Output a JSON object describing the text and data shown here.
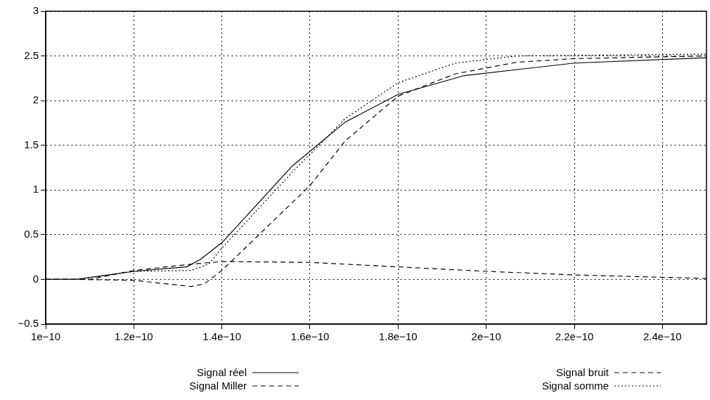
{
  "chart_data": {
    "type": "line",
    "xlim": [
      1e-10,
      2.5e-10
    ],
    "ylim": [
      -0.5,
      3
    ],
    "xticks": [
      {
        "value": 1e-10,
        "label": "1e−10"
      },
      {
        "value": 1.2e-10,
        "label": "1.2e−10"
      },
      {
        "value": 1.4e-10,
        "label": "1.4e−10"
      },
      {
        "value": 1.6e-10,
        "label": "1.6e−10"
      },
      {
        "value": 1.8e-10,
        "label": "1.8e−10"
      },
      {
        "value": 2e-10,
        "label": "2e−10"
      },
      {
        "value": 2.2e-10,
        "label": "2.2e−10"
      },
      {
        "value": 2.4e-10,
        "label": "2.4e−10"
      }
    ],
    "yticks": [
      {
        "value": -0.5,
        "label": "−0.5"
      },
      0,
      0.5,
      1,
      1.5,
      2,
      2.5,
      3
    ],
    "grid": true,
    "legend": "bottom",
    "marker": "none",
    "series": [
      {
        "name": "Signal réel",
        "color": "#000000",
        "line_style": "solid",
        "x": [
          1e-10,
          1.07e-10,
          1.2e-10,
          1.32e-10,
          1.35e-10,
          1.4e-10,
          1.56e-10,
          1.68e-10,
          1.8e-10,
          1.95e-10,
          2.2e-10,
          2.5e-10
        ],
        "values": [
          0,
          0,
          0.09,
          0.14,
          0.22,
          0.41,
          1.27,
          1.76,
          2.07,
          2.28,
          2.42,
          2.48
        ]
      },
      {
        "name": "Signal Miller",
        "color": "#000000",
        "line_style": "dashed",
        "x": [
          1e-10,
          1.07e-10,
          1.2e-10,
          1.33e-10,
          1.36e-10,
          1.4e-10,
          1.6e-10,
          1.68e-10,
          1.8e-10,
          1.93e-10,
          2.07e-10,
          2.2e-10,
          2.5e-10
        ],
        "values": [
          0,
          0,
          -0.01,
          -0.08,
          -0.05,
          0.1,
          1.05,
          1.55,
          2.05,
          2.3,
          2.43,
          2.47,
          2.5
        ]
      },
      {
        "name": "Signal bruit",
        "color": "#000000",
        "line_style": "dashed",
        "x": [
          1e-10,
          1.1e-10,
          1.2e-10,
          1.33e-10,
          1.4e-10,
          1.6e-10,
          1.8e-10,
          2e-10,
          2.2e-10,
          2.5e-10
        ],
        "values": [
          0,
          0,
          0.1,
          0.17,
          0.2,
          0.19,
          0.14,
          0.09,
          0.05,
          0.01
        ]
      },
      {
        "name": "Signal somme",
        "color": "#000000",
        "line_style": "dotted",
        "x": [
          1e-10,
          1.07e-10,
          1.2e-10,
          1.33e-10,
          1.37e-10,
          1.4e-10,
          1.56e-10,
          1.68e-10,
          1.8e-10,
          1.93e-10,
          2.07e-10,
          2.5e-10
        ],
        "values": [
          0,
          0,
          0.09,
          0.1,
          0.17,
          0.35,
          1.2,
          1.8,
          2.2,
          2.42,
          2.5,
          2.52
        ]
      }
    ]
  }
}
